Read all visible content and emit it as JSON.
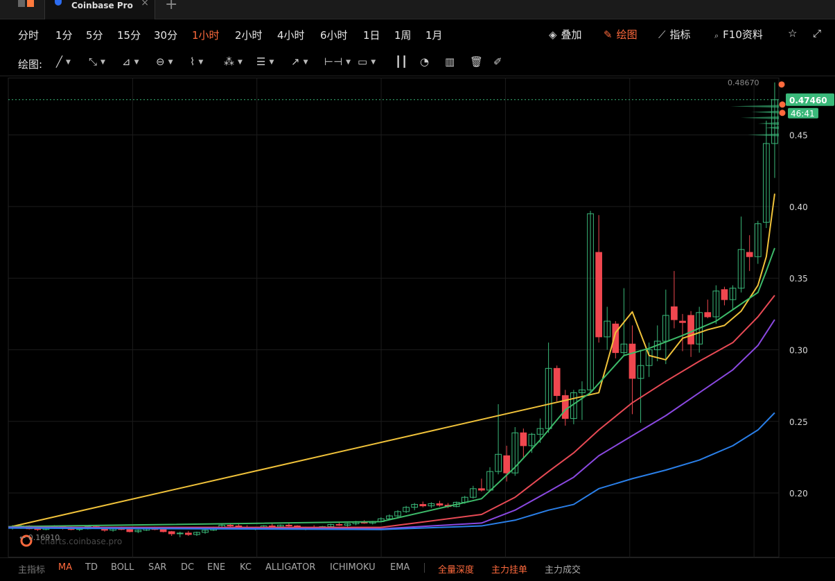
{
  "tabbar": {
    "tab_title": "Coinbase Pro",
    "close_label": "×",
    "new_tab_label": "+"
  },
  "intervals": [
    "分时",
    "1分",
    "5分",
    "15分",
    "30分",
    "1小时",
    "2小时",
    "4小时",
    "6小时",
    "1日",
    "1周",
    "1月"
  ],
  "active_interval": "1小时",
  "right_tools": [
    {
      "label": "叠加",
      "icon": "layers-icon"
    },
    {
      "label": "绘图",
      "icon": "brush-icon"
    },
    {
      "label": "指标",
      "icon": "indicator-icon"
    },
    {
      "label": "F10资料",
      "icon": "document-search-icon"
    }
  ],
  "draw_label": "绘图:",
  "indicators": {
    "main_label": "主指标",
    "items": [
      "MA",
      "TD",
      "BOLL",
      "SAR",
      "DC",
      "ENE",
      "KC",
      "ALLIGATOR",
      "ICHIMOKU",
      "EMA"
    ],
    "active": "MA",
    "extras": [
      "全量深度",
      "主力挂单",
      "主力成交"
    ]
  },
  "watermark": "charts.coinbase.pro",
  "colors": {
    "up": "#3ab97a",
    "down": "#f0474f",
    "accent": "#ff6a3d",
    "ma1": "#f0c23a",
    "ma2": "#3dbb6a",
    "ma3": "#e84a55",
    "ma4": "#8a48e0",
    "ma5": "#2a7fe8"
  },
  "chart_data": {
    "type": "candlestick",
    "ylim": [
      0.155,
      0.49
    ],
    "yticks": [
      0.2,
      0.25,
      0.3,
      0.35,
      0.4,
      0.45
    ],
    "ytick_labels": [
      "0.20",
      "0.25",
      "0.30",
      "0.35",
      "0.40",
      "0.45"
    ],
    "high_label": "0.48670",
    "low_label": "← 0.16910",
    "last_price_label": "0.47460",
    "last_price": 0.4746,
    "countdown_label": "46:41",
    "candles": [
      [
        0.1755,
        0.1775,
        0.1745,
        0.176
      ],
      [
        0.176,
        0.178,
        0.175,
        0.177
      ],
      [
        0.177,
        0.1775,
        0.1745,
        0.175
      ],
      [
        0.175,
        0.176,
        0.1735,
        0.1745
      ],
      [
        0.1745,
        0.177,
        0.174,
        0.176
      ],
      [
        0.176,
        0.1775,
        0.175,
        0.1765
      ],
      [
        0.1765,
        0.177,
        0.1745,
        0.1755
      ],
      [
        0.1755,
        0.1765,
        0.174,
        0.1745
      ],
      [
        0.1745,
        0.176,
        0.1735,
        0.175
      ],
      [
        0.175,
        0.177,
        0.1745,
        0.1765
      ],
      [
        0.1765,
        0.1775,
        0.175,
        0.1755
      ],
      [
        0.1755,
        0.176,
        0.173,
        0.174
      ],
      [
        0.174,
        0.1755,
        0.173,
        0.175
      ],
      [
        0.175,
        0.1765,
        0.174,
        0.1745
      ],
      [
        0.1745,
        0.175,
        0.1725,
        0.173
      ],
      [
        0.173,
        0.1745,
        0.172,
        0.174
      ],
      [
        0.174,
        0.176,
        0.1735,
        0.1755
      ],
      [
        0.1755,
        0.1765,
        0.174,
        0.1745
      ],
      [
        0.1745,
        0.1755,
        0.1725,
        0.173
      ],
      [
        0.173,
        0.1735,
        0.17,
        0.1715
      ],
      [
        0.1715,
        0.173,
        0.1691,
        0.172
      ],
      [
        0.172,
        0.1735,
        0.17,
        0.171
      ],
      [
        0.171,
        0.173,
        0.17,
        0.1725
      ],
      [
        0.1725,
        0.1745,
        0.1715,
        0.174
      ],
      [
        0.174,
        0.1765,
        0.1735,
        0.176
      ],
      [
        0.176,
        0.1785,
        0.1755,
        0.1775
      ],
      [
        0.1775,
        0.179,
        0.176,
        0.177
      ],
      [
        0.177,
        0.179,
        0.1755,
        0.176
      ],
      [
        0.176,
        0.1775,
        0.1745,
        0.175
      ],
      [
        0.175,
        0.1765,
        0.174,
        0.1755
      ],
      [
        0.1755,
        0.1775,
        0.175,
        0.177
      ],
      [
        0.177,
        0.1785,
        0.176,
        0.1765
      ],
      [
        0.1765,
        0.178,
        0.1755,
        0.1775
      ],
      [
        0.1775,
        0.179,
        0.1765,
        0.177
      ],
      [
        0.177,
        0.1775,
        0.1745,
        0.175
      ],
      [
        0.175,
        0.1765,
        0.174,
        0.176
      ],
      [
        0.176,
        0.1775,
        0.175,
        0.1755
      ],
      [
        0.1755,
        0.177,
        0.1745,
        0.1765
      ],
      [
        0.1765,
        0.1785,
        0.1755,
        0.178
      ],
      [
        0.178,
        0.1795,
        0.177,
        0.1775
      ],
      [
        0.1775,
        0.179,
        0.1765,
        0.1785
      ],
      [
        0.1785,
        0.1805,
        0.1775,
        0.1795
      ],
      [
        0.1795,
        0.181,
        0.1785,
        0.179
      ],
      [
        0.179,
        0.1805,
        0.178,
        0.18
      ],
      [
        0.18,
        0.183,
        0.1795,
        0.182
      ],
      [
        0.182,
        0.185,
        0.181,
        0.184
      ],
      [
        0.184,
        0.188,
        0.183,
        0.187
      ],
      [
        0.187,
        0.191,
        0.186,
        0.19
      ],
      [
        0.19,
        0.193,
        0.188,
        0.192
      ],
      [
        0.192,
        0.194,
        0.19,
        0.191
      ],
      [
        0.191,
        0.1935,
        0.1895,
        0.1925
      ],
      [
        0.1925,
        0.1945,
        0.1905,
        0.1915
      ],
      [
        0.1915,
        0.193,
        0.1895,
        0.1905
      ],
      [
        0.1905,
        0.194,
        0.19,
        0.1935
      ],
      [
        0.1935,
        0.198,
        0.1925,
        0.197
      ],
      [
        0.197,
        0.205,
        0.196,
        0.203
      ],
      [
        0.203,
        0.21,
        0.201,
        0.202
      ],
      [
        0.202,
        0.218,
        0.201,
        0.215
      ],
      [
        0.215,
        0.262,
        0.213,
        0.227
      ],
      [
        0.226,
        0.233,
        0.208,
        0.214
      ],
      [
        0.214,
        0.246,
        0.212,
        0.242
      ],
      [
        0.242,
        0.245,
        0.225,
        0.233
      ],
      [
        0.233,
        0.242,
        0.228,
        0.241
      ],
      [
        0.241,
        0.252,
        0.235,
        0.245
      ],
      [
        0.245,
        0.305,
        0.242,
        0.287
      ],
      [
        0.287,
        0.289,
        0.264,
        0.268
      ],
      [
        0.268,
        0.272,
        0.247,
        0.252
      ],
      [
        0.252,
        0.272,
        0.248,
        0.27
      ],
      [
        0.27,
        0.278,
        0.251,
        0.272
      ],
      [
        0.272,
        0.397,
        0.27,
        0.395
      ],
      [
        0.368,
        0.394,
        0.305,
        0.309
      ],
      [
        0.309,
        0.33,
        0.3,
        0.32
      ],
      [
        0.318,
        0.32,
        0.294,
        0.298
      ],
      [
        0.298,
        0.343,
        0.296,
        0.304
      ],
      [
        0.304,
        0.317,
        0.255,
        0.28
      ],
      [
        0.28,
        0.3,
        0.249,
        0.289
      ],
      [
        0.289,
        0.305,
        0.281,
        0.3
      ],
      [
        0.3,
        0.317,
        0.292,
        0.306
      ],
      [
        0.306,
        0.342,
        0.29,
        0.324
      ],
      [
        0.33,
        0.355,
        0.315,
        0.321
      ],
      [
        0.32,
        0.325,
        0.299,
        0.319
      ],
      [
        0.324,
        0.327,
        0.295,
        0.304
      ],
      [
        0.304,
        0.33,
        0.298,
        0.326
      ],
      [
        0.326,
        0.335,
        0.322,
        0.323
      ],
      [
        0.323,
        0.345,
        0.318,
        0.341
      ],
      [
        0.342,
        0.344,
        0.331,
        0.335
      ],
      [
        0.335,
        0.345,
        0.328,
        0.343
      ],
      [
        0.343,
        0.393,
        0.34,
        0.37
      ],
      [
        0.368,
        0.38,
        0.355,
        0.365
      ],
      [
        0.365,
        0.39,
        0.36,
        0.388
      ],
      [
        0.389,
        0.46,
        0.385,
        0.444
      ],
      [
        0.444,
        0.4867,
        0.42,
        0.4746
      ]
    ],
    "ma_series": [
      {
        "start": 0.176,
        "points": [
          [
            70,
            0.27
          ],
          [
            72,
            0.312
          ],
          [
            74,
            0.3265
          ],
          [
            76,
            0.296
          ],
          [
            78,
            0.293
          ],
          [
            80,
            0.308
          ],
          [
            83,
            0.314
          ],
          [
            85,
            0.317
          ],
          [
            87,
            0.327
          ],
          [
            89,
            0.345
          ],
          [
            90,
            0.365
          ],
          [
            91,
            0.409
          ]
        ]
      },
      {
        "start": 0.1765,
        "points": [
          [
            44,
            0.18
          ],
          [
            56,
            0.196
          ],
          [
            60,
            0.218
          ],
          [
            63,
            0.237
          ],
          [
            66,
            0.258
          ],
          [
            69,
            0.27
          ],
          [
            71,
            0.283
          ],
          [
            73,
            0.296
          ],
          [
            76,
            0.301
          ],
          [
            80,
            0.31
          ],
          [
            84,
            0.32
          ],
          [
            87,
            0.332
          ],
          [
            89,
            0.34
          ],
          [
            90,
            0.355
          ],
          [
            91,
            0.371
          ]
        ]
      },
      {
        "start": 0.176,
        "points": [
          [
            44,
            0.176
          ],
          [
            56,
            0.185
          ],
          [
            60,
            0.197
          ],
          [
            64,
            0.215
          ],
          [
            67,
            0.228
          ],
          [
            70,
            0.244
          ],
          [
            74,
            0.263
          ],
          [
            78,
            0.278
          ],
          [
            82,
            0.292
          ],
          [
            86,
            0.305
          ],
          [
            89,
            0.323
          ],
          [
            91,
            0.338
          ]
        ]
      },
      {
        "start": 0.176,
        "points": [
          [
            44,
            0.175
          ],
          [
            56,
            0.179
          ],
          [
            60,
            0.188
          ],
          [
            64,
            0.201
          ],
          [
            67,
            0.211
          ],
          [
            70,
            0.226
          ],
          [
            74,
            0.24
          ],
          [
            78,
            0.254
          ],
          [
            82,
            0.27
          ],
          [
            86,
            0.286
          ],
          [
            89,
            0.303
          ],
          [
            91,
            0.321
          ]
        ]
      },
      {
        "start": 0.1755,
        "points": [
          [
            44,
            0.1745
          ],
          [
            56,
            0.177
          ],
          [
            60,
            0.181
          ],
          [
            64,
            0.188
          ],
          [
            67,
            0.192
          ],
          [
            70,
            0.203
          ],
          [
            74,
            0.21
          ],
          [
            78,
            0.216
          ],
          [
            82,
            0.223
          ],
          [
            86,
            0.233
          ],
          [
            89,
            0.244
          ],
          [
            91,
            0.256
          ]
        ]
      }
    ]
  }
}
